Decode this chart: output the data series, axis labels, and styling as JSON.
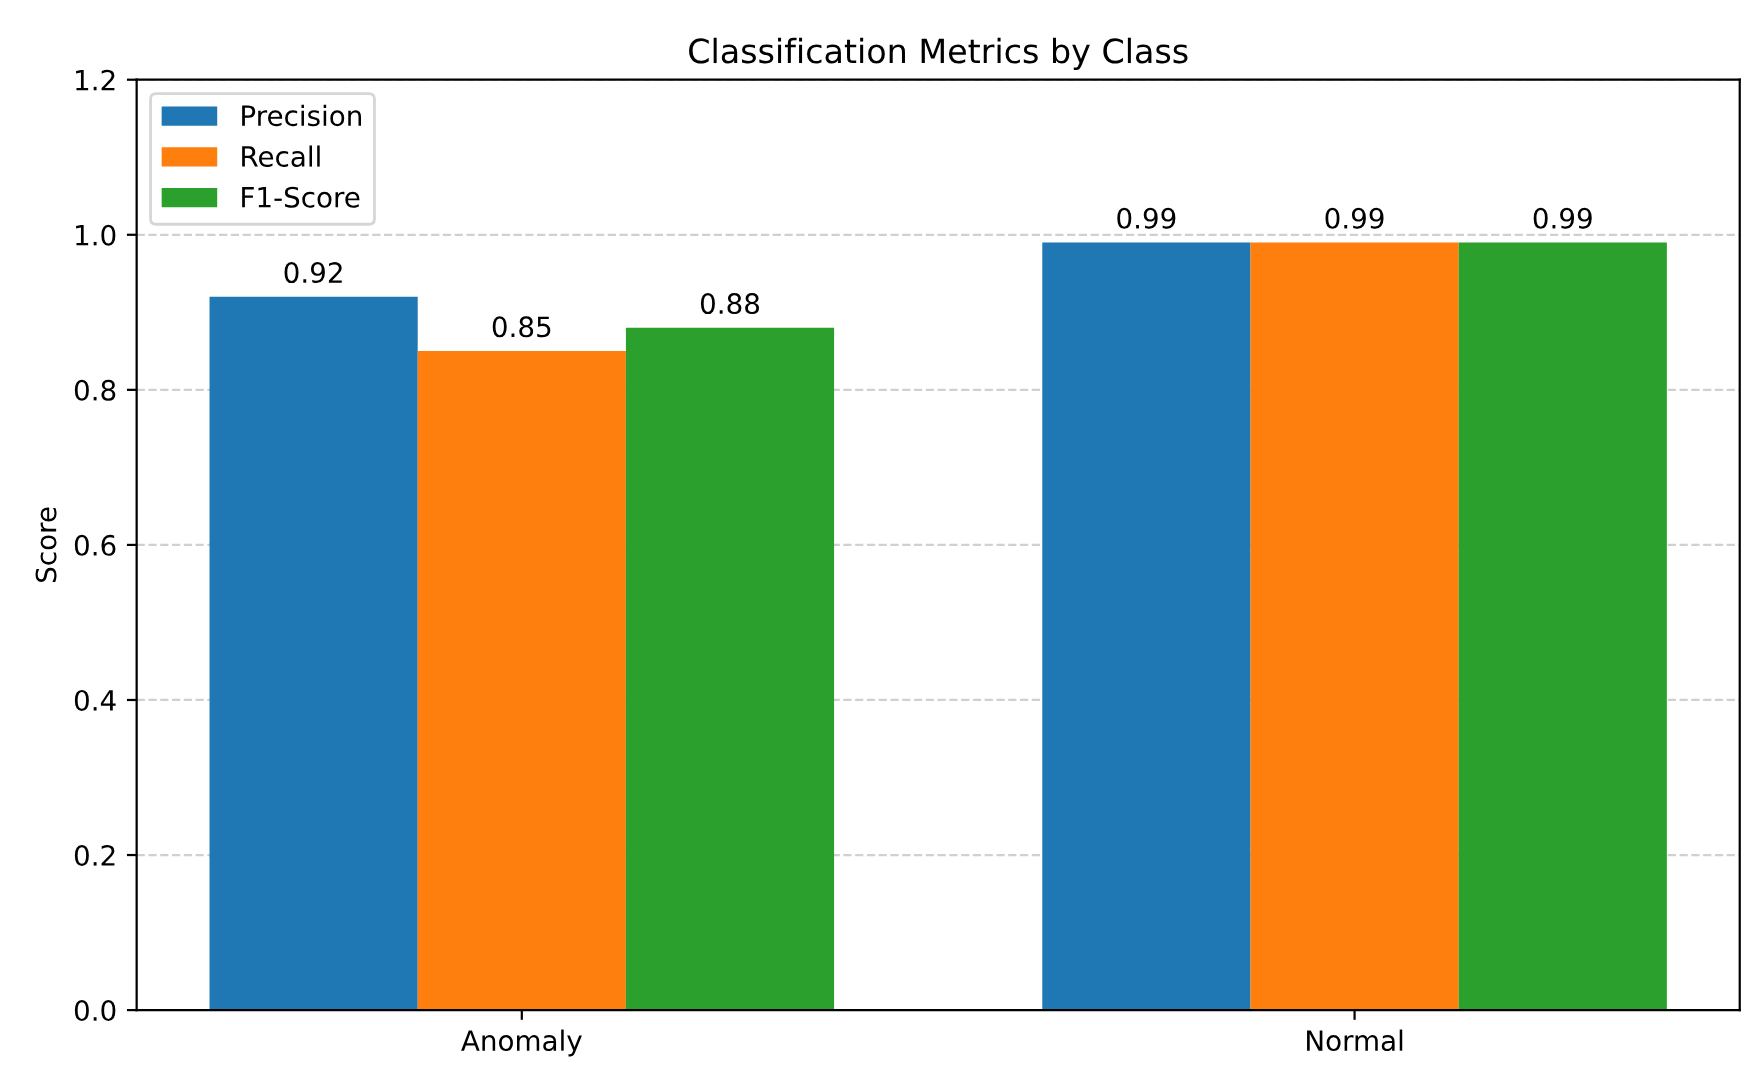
{
  "chart_data": {
    "type": "bar",
    "title": "Classification Metrics by Class",
    "ylabel": "Score",
    "categories": [
      "Anomaly",
      "Normal"
    ],
    "series": [
      {
        "name": "Precision",
        "color": "#1f77b4",
        "values": [
          0.92,
          0.99
        ]
      },
      {
        "name": "Recall",
        "color": "#ff7f0e",
        "values": [
          0.85,
          0.99
        ]
      },
      {
        "name": "F1-Score",
        "color": "#2ca02c",
        "values": [
          0.88,
          0.99
        ]
      }
    ],
    "ylim": [
      0,
      1.2
    ],
    "yticks": [
      {
        "value": 0,
        "label": "0.0"
      },
      0.2,
      0.4,
      0.6,
      0.8,
      {
        "value": 1,
        "label": "1.0"
      },
      1.2
    ],
    "grid": "y",
    "legend": "top left",
    "data_labels": true
  }
}
